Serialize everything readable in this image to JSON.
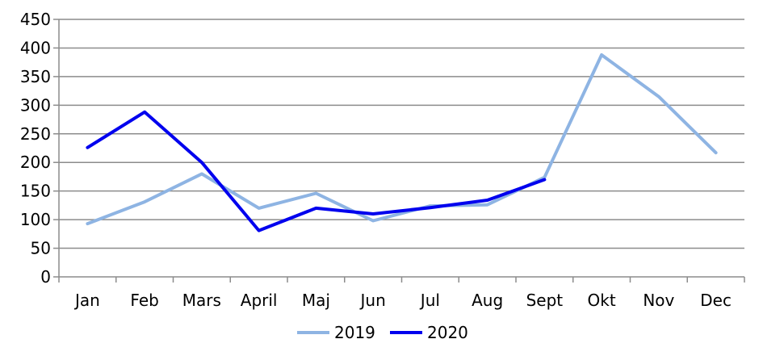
{
  "chart_data": {
    "type": "line",
    "categories": [
      "Jan",
      "Feb",
      "Mars",
      "April",
      "Maj",
      "Jun",
      "Jul",
      "Aug",
      "Sept",
      "Okt",
      "Nov",
      "Dec"
    ],
    "series": [
      {
        "name": "2019",
        "color": "#8eb4e3",
        "values": [
          93,
          131,
          180,
          120,
          146,
          98,
          124,
          126,
          174,
          388,
          315,
          217
        ]
      },
      {
        "name": "2020",
        "color": "#0000ee",
        "values": [
          226,
          288,
          200,
          81,
          120,
          110,
          121,
          134,
          170,
          null,
          null,
          null
        ]
      }
    ],
    "ylim": [
      0,
      450
    ],
    "yticks": [
      0,
      50,
      100,
      150,
      200,
      250,
      300,
      350,
      400,
      450
    ],
    "grid": true,
    "legend": "bottom-center",
    "title": "",
    "xlabel": "",
    "ylabel": ""
  }
}
